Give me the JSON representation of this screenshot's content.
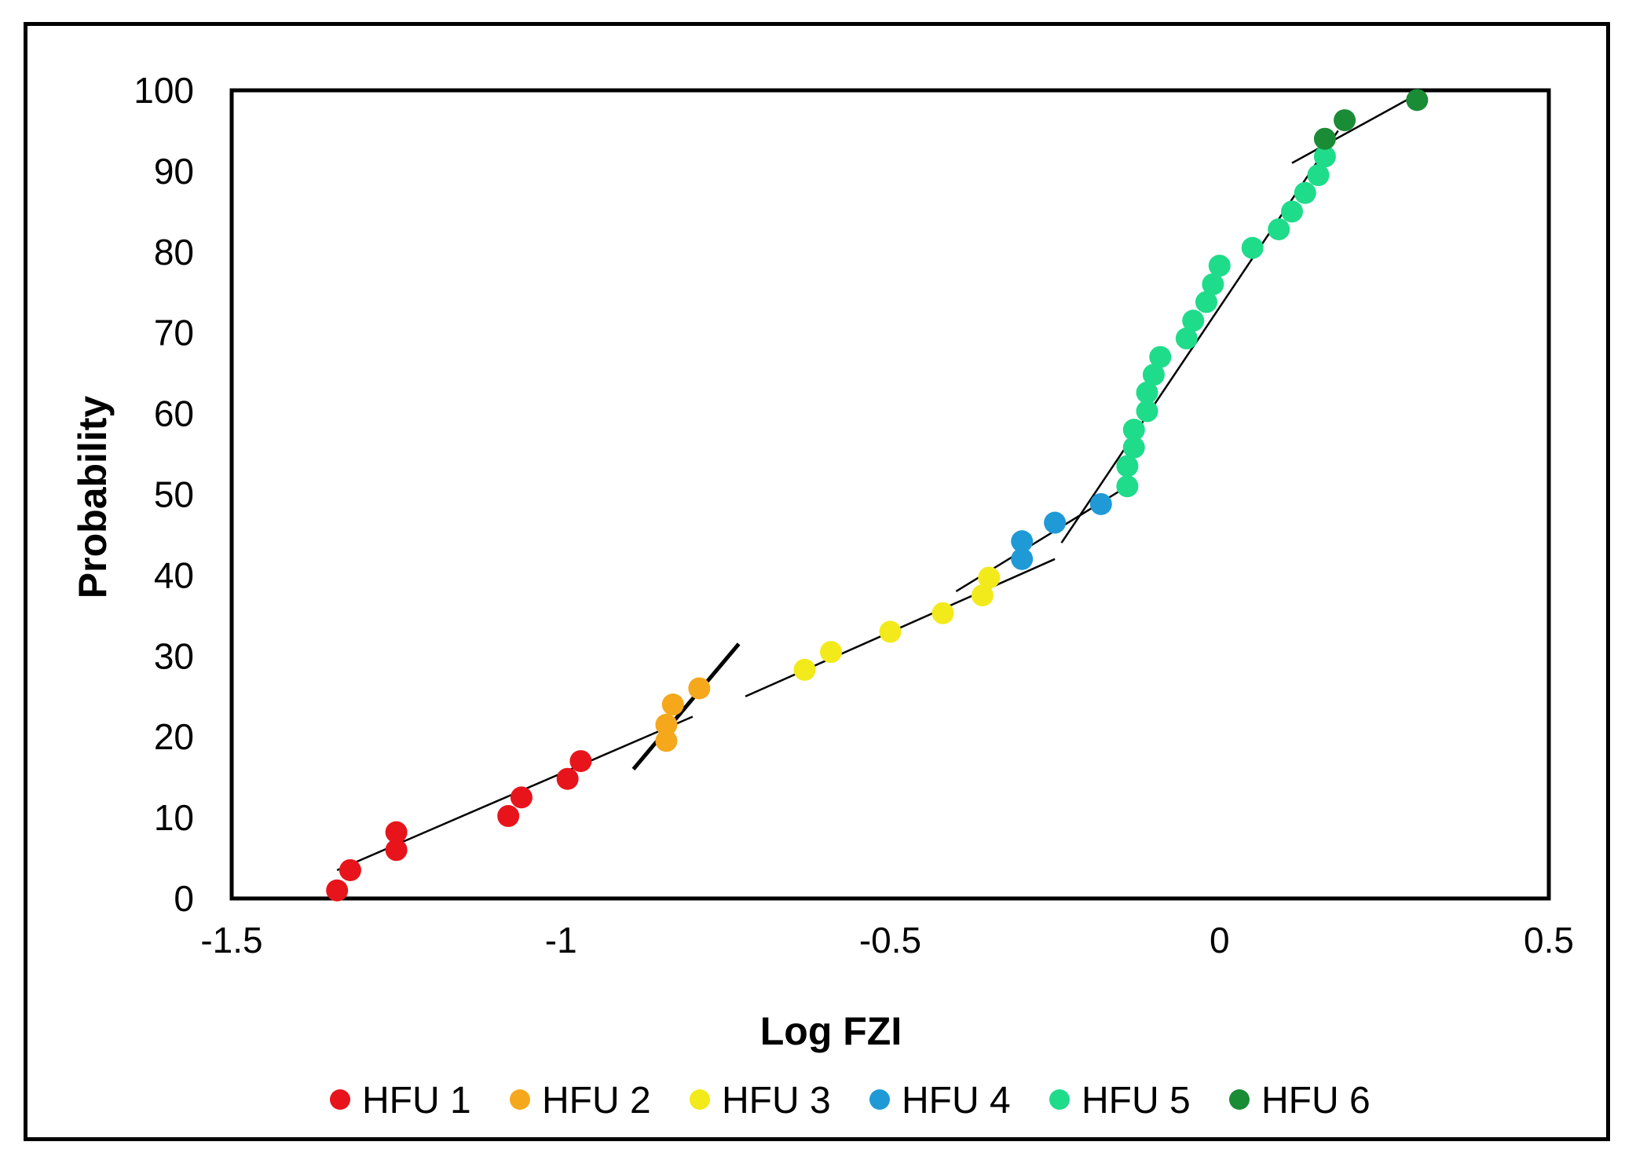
{
  "chart_data": {
    "type": "scatter",
    "title": "",
    "xlabel": "Log FZI",
    "ylabel": "Probability",
    "xlim": [
      -1.5,
      0.5
    ],
    "ylim": [
      0,
      100
    ],
    "x_ticks": [
      "-1.5",
      "-1",
      "-0.5",
      "0",
      "0.5"
    ],
    "y_ticks": [
      "0",
      "10",
      "20",
      "30",
      "40",
      "50",
      "60",
      "70",
      "80",
      "90",
      "100"
    ],
    "grid": false,
    "legend_position": "bottom",
    "series": [
      {
        "name": "HFU 1",
        "color": "#e8141c",
        "points": [
          [
            -1.34,
            1
          ],
          [
            -1.32,
            3.5
          ],
          [
            -1.25,
            6
          ],
          [
            -1.25,
            8.2
          ],
          [
            -1.08,
            10.2
          ],
          [
            -1.06,
            12.5
          ],
          [
            -0.99,
            14.8
          ],
          [
            -0.97,
            17
          ]
        ]
      },
      {
        "name": "HFU 2",
        "color": "#f5a81c",
        "points": [
          [
            -0.84,
            19.5
          ],
          [
            -0.84,
            21.5
          ],
          [
            -0.83,
            24
          ],
          [
            -0.79,
            26
          ]
        ]
      },
      {
        "name": "HFU 3",
        "color": "#f2ea1a",
        "points": [
          [
            -0.63,
            28.3
          ],
          [
            -0.59,
            30.5
          ],
          [
            -0.5,
            33
          ],
          [
            -0.42,
            35.3
          ],
          [
            -0.36,
            37.5
          ],
          [
            -0.35,
            39.7
          ]
        ]
      },
      {
        "name": "HFU 4",
        "color": "#1f9ad6",
        "points": [
          [
            -0.3,
            42
          ],
          [
            -0.3,
            44.2
          ],
          [
            -0.25,
            46.5
          ],
          [
            -0.18,
            48.8
          ]
        ]
      },
      {
        "name": "HFU 5",
        "color": "#1fdc8a",
        "points": [
          [
            -0.14,
            51
          ],
          [
            -0.14,
            53.5
          ],
          [
            -0.13,
            55.8
          ],
          [
            -0.13,
            58
          ],
          [
            -0.11,
            60.3
          ],
          [
            -0.11,
            62.6
          ],
          [
            -0.1,
            64.8
          ],
          [
            -0.09,
            67
          ],
          [
            -0.05,
            69.3
          ],
          [
            -0.04,
            71.5
          ],
          [
            -0.02,
            73.8
          ],
          [
            -0.01,
            76
          ],
          [
            0.0,
            78.3
          ],
          [
            0.05,
            80.5
          ],
          [
            0.09,
            82.8
          ],
          [
            0.11,
            85
          ],
          [
            0.13,
            87.3
          ],
          [
            0.15,
            89.5
          ],
          [
            0.16,
            91.8
          ]
        ]
      },
      {
        "name": "HFU 6",
        "color": "#1a8c36",
        "points": [
          [
            0.16,
            94
          ],
          [
            0.19,
            96.3
          ],
          [
            0.3,
            98.8
          ]
        ]
      }
    ],
    "trend_lines": [
      {
        "series": "HFU 1",
        "x": [
          -1.34,
          -0.8
        ],
        "y": [
          3.5,
          22.5
        ],
        "thick": false
      },
      {
        "series": "HFU 2",
        "x": [
          -0.89,
          -0.73
        ],
        "y": [
          16,
          31.5
        ],
        "thick": true
      },
      {
        "series": "HFU 3",
        "x": [
          -0.72,
          -0.25
        ],
        "y": [
          25,
          42
        ],
        "thick": false
      },
      {
        "series": "HFU 4",
        "x": [
          -0.4,
          -0.13
        ],
        "y": [
          38,
          51.5
        ],
        "thick": false
      },
      {
        "series": "HFU 5",
        "x": [
          -0.24,
          0.18
        ],
        "y": [
          44,
          95
        ],
        "thick": false
      },
      {
        "series": "HFU 6",
        "x": [
          0.11,
          0.3
        ],
        "y": [
          91,
          99.5
        ],
        "thick": false
      }
    ]
  }
}
